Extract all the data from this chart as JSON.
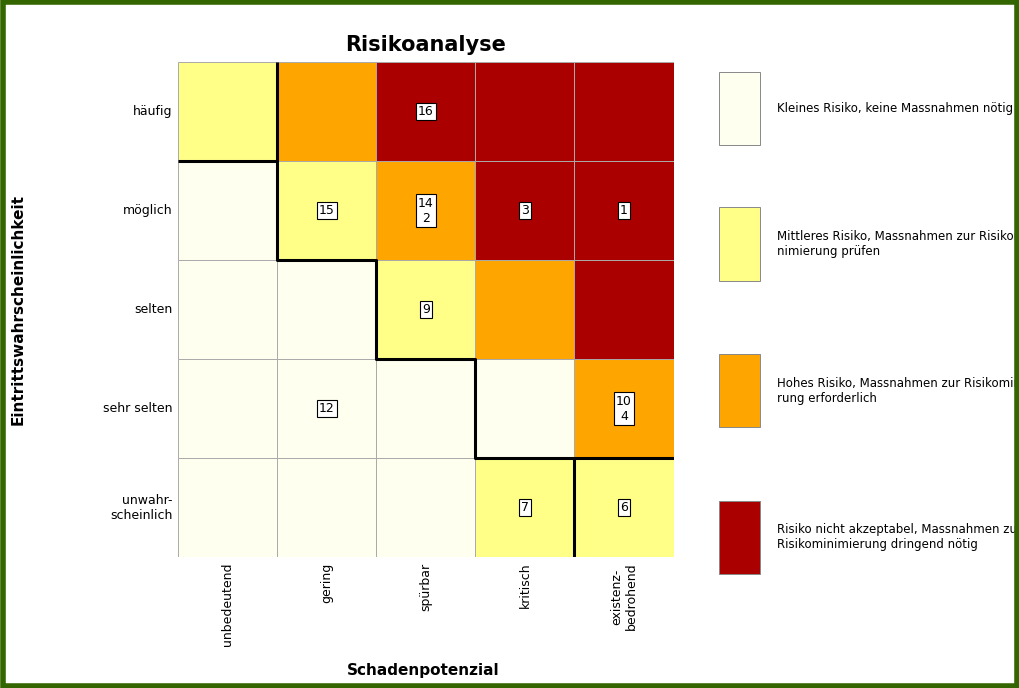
{
  "title": "Risikoanalyse",
  "xlabel": "Schadenpotenzial",
  "ylabel": "Eintrittswahrscheinlichkeit",
  "x_labels": [
    "unbedeutend",
    "gering",
    "spürbar",
    "kritisch",
    "existenz-\nbedrohend"
  ],
  "y_labels": [
    "unwahr-\nscheinlich",
    "sehr selten",
    "selten",
    "möglich",
    "häufig"
  ],
  "grid_colors": [
    [
      "#FFFFF0",
      "#FFFFF0",
      "#FFFFF0",
      "#FFFF88",
      "#FFFF88"
    ],
    [
      "#FFFFF0",
      "#FFFFF0",
      "#FFFFF0",
      "#FFFFF0",
      "#FFA500"
    ],
    [
      "#FFFFF0",
      "#FFFFF0",
      "#FFFF88",
      "#FFA500",
      "#AA0000"
    ],
    [
      "#FFFFF0",
      "#FFFF88",
      "#FFA500",
      "#AA0000",
      "#AA0000"
    ],
    [
      "#FFFF88",
      "#FFA500",
      "#AA0000",
      "#AA0000",
      "#AA0000"
    ]
  ],
  "labels": [
    {
      "row": 4,
      "col": 2,
      "text": "16"
    },
    {
      "row": 3,
      "col": 1,
      "text": "15"
    },
    {
      "row": 3,
      "col": 2,
      "text": "14\n2"
    },
    {
      "row": 3,
      "col": 3,
      "text": "3"
    },
    {
      "row": 3,
      "col": 4,
      "text": "1"
    },
    {
      "row": 2,
      "col": 2,
      "text": "9"
    },
    {
      "row": 1,
      "col": 1,
      "text": "12"
    },
    {
      "row": 1,
      "col": 4,
      "text": "10\n4"
    },
    {
      "row": 0,
      "col": 3,
      "text": "7"
    },
    {
      "row": 0,
      "col": 4,
      "text": "6"
    }
  ],
  "legend_items": [
    {
      "color": "#FFFFF0",
      "label": "Kleines Risiko, keine Massnahmen nötig"
    },
    {
      "color": "#FFFF88",
      "label": "Mittleres Risiko, Massnahmen zur Risikomi-\nnimierung prüfen"
    },
    {
      "color": "#FFA500",
      "label": "Hohes Risiko, Massnahmen zur Risikominimie-\nrung erforderlich"
    },
    {
      "color": "#AA0000",
      "label": "Risiko nicht akzeptabel, Massnahmen zur\nRisikominimierung dringend nötig"
    }
  ],
  "border_color": "#006400",
  "thick_line_color": "#000000",
  "cell_edge_color": "#aaaaaa",
  "fig_width": 10.2,
  "fig_height": 6.88
}
